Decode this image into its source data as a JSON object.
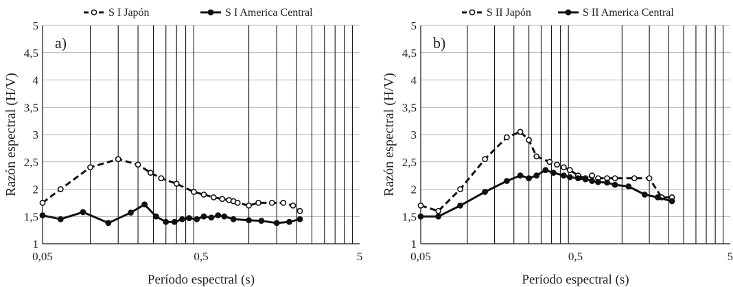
{
  "chart_data": [
    {
      "type": "line",
      "panel_label": "a)",
      "xscale": "log",
      "xlim": [
        0.05,
        5
      ],
      "xticks": [
        "0,05",
        "0,5",
        "5"
      ],
      "ylim": [
        1,
        5
      ],
      "yticks": [
        "1",
        "1,5",
        "2",
        "2,5",
        "3",
        "3,5",
        "4",
        "4,5",
        "5"
      ],
      "xlabel": "Período espectral (s)",
      "ylabel": "Razón espectral (H/V)",
      "grid": "vertical log grid lines",
      "legend_position": "top",
      "series": [
        {
          "name": "S I Japón",
          "style": "dashed",
          "x": [
            0.05,
            0.065,
            0.1,
            0.15,
            0.2,
            0.24,
            0.28,
            0.35,
            0.45,
            0.52,
            0.6,
            0.68,
            0.75,
            0.8,
            0.85,
            1.0,
            1.15,
            1.4,
            1.65,
            1.9,
            2.1
          ],
          "values": [
            1.75,
            2.0,
            2.4,
            2.55,
            2.45,
            2.3,
            2.2,
            2.1,
            1.95,
            1.9,
            1.85,
            1.82,
            1.8,
            1.78,
            1.75,
            1.7,
            1.75,
            1.75,
            1.75,
            1.7,
            1.6
          ]
        },
        {
          "name": "S I America Central",
          "style": "solid",
          "x": [
            0.05,
            0.065,
            0.09,
            0.13,
            0.18,
            0.22,
            0.26,
            0.3,
            0.34,
            0.38,
            0.42,
            0.47,
            0.52,
            0.58,
            0.64,
            0.7,
            0.8,
            1.0,
            1.2,
            1.5,
            1.8,
            2.1
          ],
          "values": [
            1.52,
            1.45,
            1.58,
            1.38,
            1.57,
            1.72,
            1.5,
            1.4,
            1.4,
            1.45,
            1.47,
            1.45,
            1.5,
            1.48,
            1.52,
            1.5,
            1.45,
            1.43,
            1.42,
            1.38,
            1.4,
            1.45
          ]
        }
      ]
    },
    {
      "type": "line",
      "panel_label": "b)",
      "xscale": "log",
      "xlim": [
        0.05,
        5
      ],
      "xticks": [
        "0,05",
        "0,5",
        "5"
      ],
      "ylim": [
        1,
        5
      ],
      "yticks": [
        "1",
        "1,5",
        "2",
        "2,5",
        "3",
        "3,5",
        "4",
        "4,5",
        "5"
      ],
      "xlabel": "Período espectral (s)",
      "ylabel": "Razón espectral (H/V)",
      "grid": "vertical log grid lines",
      "legend_position": "top",
      "series": [
        {
          "name": "S II Japón",
          "style": "dashed",
          "x": [
            0.05,
            0.065,
            0.09,
            0.13,
            0.18,
            0.22,
            0.25,
            0.28,
            0.34,
            0.38,
            0.42,
            0.46,
            0.52,
            0.58,
            0.64,
            0.7,
            0.8,
            0.9,
            1.2,
            1.5,
            1.8,
            2.1
          ],
          "values": [
            1.7,
            1.6,
            2.0,
            2.55,
            2.95,
            3.05,
            2.9,
            2.6,
            2.5,
            2.45,
            2.4,
            2.35,
            2.25,
            2.2,
            2.25,
            2.2,
            2.2,
            2.2,
            2.2,
            2.2,
            1.85,
            1.85
          ]
        },
        {
          "name": "S II America Central",
          "style": "solid",
          "x": [
            0.05,
            0.065,
            0.09,
            0.13,
            0.18,
            0.22,
            0.25,
            0.28,
            0.32,
            0.36,
            0.42,
            0.46,
            0.52,
            0.58,
            0.64,
            0.7,
            0.8,
            0.9,
            1.1,
            1.4,
            1.7,
            2.1
          ],
          "values": [
            1.5,
            1.5,
            1.7,
            1.95,
            2.15,
            2.25,
            2.2,
            2.25,
            2.35,
            2.3,
            2.25,
            2.22,
            2.2,
            2.18,
            2.15,
            2.13,
            2.12,
            2.08,
            2.05,
            1.9,
            1.85,
            1.78
          ]
        }
      ]
    }
  ]
}
